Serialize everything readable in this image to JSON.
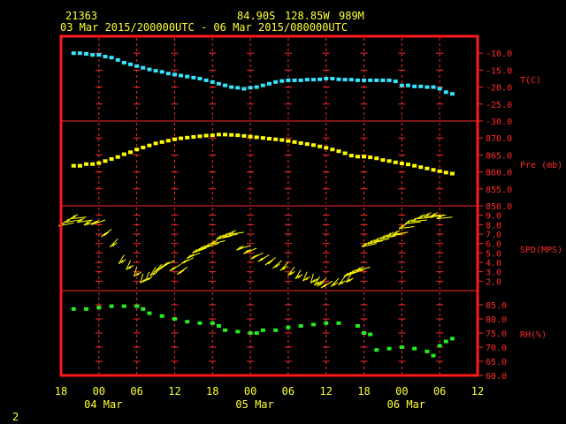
{
  "header": {
    "station": "21363",
    "lat": "84.90S",
    "lon": "128.85W",
    "elev": "989M",
    "range": "03 Mar 2015/200000UTC - 06 Mar 2015/080000UTC"
  },
  "corner_label": "2",
  "colors": {
    "frame": "#ff1a1a",
    "grid": "#ff2a2a",
    "text": "#ffff33",
    "temperature": "#33e6ff",
    "pressure": "#ffff00",
    "wind": "#ffff00",
    "humidity": "#22ee22"
  },
  "chart_data": {
    "type": "scatter",
    "x_unit": "hours after 04 Mar 2015 00 UTC",
    "x_ticks": [
      {
        "x": -6,
        "label": "18"
      },
      {
        "x": 0,
        "label": "00"
      },
      {
        "x": 6,
        "label": "06"
      },
      {
        "x": 12,
        "label": "12"
      },
      {
        "x": 18,
        "label": "18"
      },
      {
        "x": 24,
        "label": "00"
      },
      {
        "x": 30,
        "label": "06"
      },
      {
        "x": 36,
        "label": "12"
      },
      {
        "x": 42,
        "label": "18"
      },
      {
        "x": 48,
        "label": "00"
      },
      {
        "x": 54,
        "label": "06"
      },
      {
        "x": 60,
        "label": "12"
      }
    ],
    "day_labels": [
      {
        "x": 0,
        "label": "04 Mar"
      },
      {
        "x": 24,
        "label": "05 Mar"
      },
      {
        "x": 48,
        "label": "06 Mar"
      }
    ],
    "xlim": [
      -6,
      60
    ],
    "panels": [
      {
        "name": "temperature",
        "label": "T(C)",
        "ylim": [
          -30,
          -5
        ],
        "yticks": [
          -10.0,
          -15.0,
          -20.0,
          -25.0,
          -30.0
        ],
        "ytick_labels": [
          "-10.0",
          "-15.0",
          "-20.0",
          "-25.0",
          "-30.0"
        ],
        "x": [
          -4,
          -3,
          -2,
          -1,
          0,
          1,
          2,
          3,
          4,
          5,
          6,
          7,
          8,
          9,
          10,
          11,
          12,
          13,
          14,
          15,
          16,
          17,
          18,
          19,
          20,
          21,
          22,
          23,
          24,
          25,
          26,
          27,
          28,
          29,
          30,
          31,
          32,
          33,
          34,
          35,
          36,
          37,
          38,
          39,
          40,
          41,
          42,
          43,
          44,
          45,
          46,
          47,
          48,
          49,
          50,
          51,
          52,
          53,
          54,
          55,
          56
        ],
        "values": [
          -10,
          -10,
          -10.2,
          -10.5,
          -10.5,
          -11,
          -11.3,
          -12,
          -12.8,
          -13.3,
          -13.8,
          -14.3,
          -14.8,
          -15.2,
          -15.5,
          -16,
          -16.3,
          -16.6,
          -16.9,
          -17.2,
          -17.5,
          -18,
          -18.5,
          -19,
          -19.5,
          -20,
          -20.2,
          -20.5,
          -20.2,
          -20,
          -19.5,
          -19,
          -18.5,
          -18.2,
          -18,
          -18,
          -18,
          -17.8,
          -17.8,
          -17.7,
          -17.5,
          -17.5,
          -17.7,
          -17.8,
          -17.8,
          -18,
          -18,
          -18,
          -18,
          -18,
          -18,
          -18.3,
          -19.5,
          -19.5,
          -19.8,
          -19.8,
          -20,
          -20,
          -20.5,
          -21.5,
          -22
        ]
      },
      {
        "name": "pressure",
        "label": "Pre (mb)",
        "ylim": [
          850,
          875
        ],
        "yticks": [
          870.0,
          865.0,
          860.0,
          855.0,
          850.0
        ],
        "ytick_labels": [
          "870.0",
          "865.0",
          "860.0",
          "855.0",
          "850.0"
        ],
        "x": [
          -4,
          -3,
          -2,
          -1,
          0,
          1,
          2,
          3,
          4,
          5,
          6,
          7,
          8,
          9,
          10,
          11,
          12,
          13,
          14,
          15,
          16,
          17,
          18,
          19,
          20,
          21,
          22,
          23,
          24,
          25,
          26,
          27,
          28,
          29,
          30,
          31,
          32,
          33,
          34,
          35,
          36,
          37,
          38,
          39,
          40,
          41,
          42,
          43,
          44,
          45,
          46,
          47,
          48,
          49,
          50,
          51,
          52,
          53,
          54,
          55,
          56
        ],
        "values": [
          861.8,
          861.8,
          862.3,
          862.3,
          862.6,
          863.2,
          863.8,
          864.4,
          865.2,
          865.8,
          866.6,
          867.2,
          867.8,
          868.4,
          868.8,
          869.2,
          869.6,
          869.9,
          870.1,
          870.3,
          870.5,
          870.7,
          870.8,
          871,
          871,
          870.9,
          870.8,
          870.6,
          870.4,
          870.2,
          870,
          869.8,
          869.6,
          869.4,
          869.1,
          868.8,
          868.5,
          868.2,
          867.9,
          867.5,
          867.1,
          866.6,
          866.1,
          865.5,
          864.8,
          864.5,
          864.5,
          864.3,
          864,
          863.5,
          863.2,
          862.8,
          862.5,
          862.2,
          861.8,
          861.4,
          861,
          860.6,
          860.2,
          859.8,
          859.5
        ]
      },
      {
        "name": "wind_speed",
        "label": "SPD(MPS)",
        "ylim": [
          1,
          10
        ],
        "yticks": [
          9.0,
          8.0,
          7.0,
          6.0,
          5.0,
          4.0,
          3.0,
          2.0
        ],
        "ytick_labels": [
          "9.0",
          "8.0",
          "7.0",
          "6.0",
          "5.0",
          "4.0",
          "3.0",
          "2.0"
        ],
        "x": [
          -4,
          -3,
          -2,
          -1,
          0,
          1,
          2,
          3,
          4,
          5,
          6,
          7,
          8,
          9,
          10,
          11,
          12,
          13,
          14,
          15,
          16,
          17,
          18,
          19,
          20,
          21,
          22,
          23,
          24,
          25,
          26,
          27,
          28,
          29,
          30,
          31,
          32,
          33,
          34,
          35,
          36,
          37,
          38,
          39,
          40,
          41,
          42,
          43,
          44,
          45,
          46,
          47,
          48,
          49,
          50,
          51,
          52,
          53,
          54,
          55,
          56
        ],
        "values": [
          8.2,
          8.5,
          8.8,
          8.5,
          8.3,
          8.5,
          7.5,
          6.5,
          4.8,
          4.2,
          3.5,
          2.8,
          3.0,
          3.5,
          3.8,
          4.0,
          4.2,
          3.8,
          3.5,
          4.5,
          5.0,
          5.5,
          5.8,
          6.0,
          6.3,
          6.8,
          7.0,
          7.2,
          5.8,
          5.5,
          5.0,
          4.8,
          4.5,
          4.2,
          4.0,
          3.5,
          3.2,
          3.0,
          2.8,
          2.5,
          2.3,
          2.0,
          2.3,
          2.5,
          2.8,
          3.0,
          3.2,
          3.5,
          6.0,
          6.3,
          6.5,
          6.8,
          7.0,
          7.2,
          7.8,
          8.3,
          8.5,
          8.8,
          9.0,
          9.0,
          8.8
        ],
        "dir_deg": [
          70,
          75,
          80,
          75,
          70,
          60,
          40,
          30,
          20,
          15,
          10,
          10,
          15,
          20,
          30,
          40,
          50,
          45,
          40,
          50,
          55,
          60,
          62,
          65,
          68,
          70,
          72,
          75,
          60,
          55,
          50,
          45,
          40,
          35,
          30,
          25,
          20,
          15,
          10,
          20,
          35,
          45,
          30,
          25,
          20,
          60,
          65,
          65,
          70,
          70,
          72,
          72,
          75,
          75,
          78,
          78,
          80,
          80,
          80,
          80,
          80
        ]
      },
      {
        "name": "humidity",
        "label": "RH(%)",
        "ylim": [
          60,
          90
        ],
        "yticks": [
          85.0,
          80.0,
          75.0,
          70.0,
          65.0,
          60.0
        ],
        "ytick_labels": [
          "85.0",
          "80.0",
          "75.0",
          "70.0",
          "65.0",
          "60.0"
        ],
        "x": [
          -4,
          -2,
          0,
          2,
          4,
          6,
          7,
          8,
          10,
          12,
          14,
          16,
          18,
          19,
          20,
          22,
          24,
          25,
          26,
          28,
          30,
          32,
          34,
          36,
          38,
          41,
          42,
          43,
          44,
          46,
          48,
          50,
          52,
          53,
          54,
          55,
          56
        ],
        "values": [
          83.5,
          83.5,
          84,
          84.5,
          84.5,
          84.5,
          83.5,
          82,
          81,
          80,
          79,
          78.5,
          78.5,
          77.5,
          76,
          75.5,
          75,
          75,
          76,
          76,
          77,
          77.5,
          78,
          78.5,
          78.5,
          77.5,
          75,
          74.5,
          69,
          69.5,
          70,
          69.5,
          68.5,
          67,
          70.5,
          72,
          73
        ]
      }
    ]
  }
}
